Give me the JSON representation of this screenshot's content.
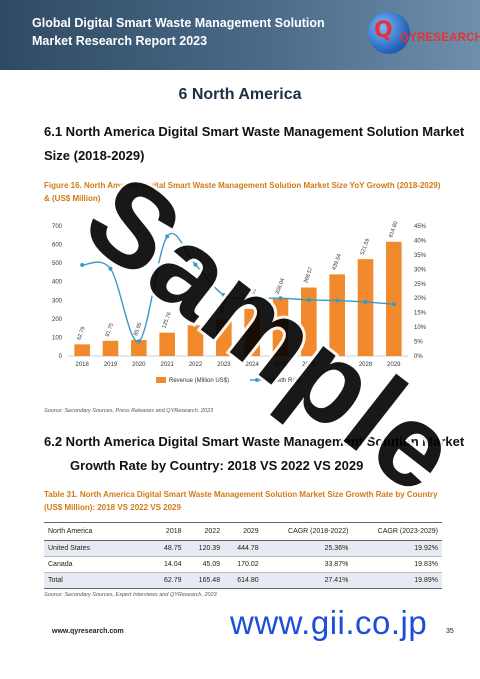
{
  "header": {
    "title": "Global Digital Smart Waste Management Solution Market Research Report 2023",
    "logo_q": "Q",
    "logo_text": "QYRESEARCH"
  },
  "chapter_title": "6  North America",
  "section_1": {
    "line1": "6.1  North America Digital Smart Waste Management Solution Market",
    "line2": "Size (2018-2029)"
  },
  "figure_caption": "Figure 16.   North America Digital Smart Waste Management Solution Market Size YoY Growth (2018-2029) & (US$ Million)",
  "chart_data": {
    "type": "bar",
    "categories": [
      "2018",
      "2019",
      "2020",
      "2021",
      "2022",
      "2023",
      "2024",
      "2025",
      "2026",
      "2027",
      "2028",
      "2029"
    ],
    "series": [
      {
        "name": "Revenue (Million US$)",
        "type": "bar",
        "color": "#f08a2c",
        "values": [
          62.79,
          81.75,
          85.95,
          125.76,
          165.48,
          196.54,
          253.61,
          308.04,
          368.57,
          439.54,
          521.59,
          614.8
        ],
        "labels": [
          "62.79",
          "81.75",
          "85.95",
          "125.76",
          "165.48",
          "196.54",
          "253.61",
          "308.04",
          "368.57",
          "439.54",
          "521.59",
          "614.80"
        ]
      },
      {
        "name": "Growth Rate",
        "type": "line",
        "color": "#3b9ac4",
        "values": [
          0.315,
          0.302,
          0.051,
          0.414,
          0.316,
          0.211,
          0.2,
          0.2,
          0.194,
          0.192,
          0.187,
          0.179
        ]
      }
    ],
    "y_left_ticks": [
      "0",
      "100",
      "200",
      "300",
      "400",
      "500",
      "600",
      "700"
    ],
    "ylim_left": [
      0,
      700
    ],
    "y_right_ticks": [
      "0%",
      "5%",
      "10%",
      "15%",
      "20%",
      "25%",
      "30%",
      "35%",
      "40%",
      "45%"
    ],
    "ylim_right": [
      0,
      0.45
    ],
    "legend_position": "bottom",
    "legend": [
      "Revenue (Million US$)",
      "Growth Rate"
    ]
  },
  "figure_source": "Source: Secondary Sources, Press Releases and QYResearch, 2023",
  "section_2": {
    "line1": "6.2  North America Digital Smart Waste Management Solution Market",
    "line2": "Growth Rate by Country: 2018 VS 2022 VS 2029"
  },
  "table_caption": "Table 31.   North America Digital Smart Waste Management Solution Market Size Growth Rate by Country (US$ Million): 2018 VS 2022 VS 2029",
  "table": {
    "headers": [
      "North America",
      "2018",
      "2022",
      "2029",
      "CAGR (2018-2022)",
      "CAGR (2023-2029)"
    ],
    "rows": [
      [
        "United States",
        "48.75",
        "120.39",
        "444.78",
        "25.36%",
        "19.92%"
      ],
      [
        "Canada",
        "14.04",
        "45.09",
        "170.02",
        "33.87%",
        "19.83%"
      ],
      [
        "Total",
        "62.79",
        "165.48",
        "614.80",
        "27.41%",
        "19.89%"
      ]
    ]
  },
  "table_source": "Source: Secondary Sources, Expert Interviews and QYResearch, 2023",
  "footer": {
    "url": "www.qyresearch.com",
    "page": "35"
  },
  "watermarks": {
    "sample": "Sample",
    "gii": "www.gii.co.jp"
  }
}
